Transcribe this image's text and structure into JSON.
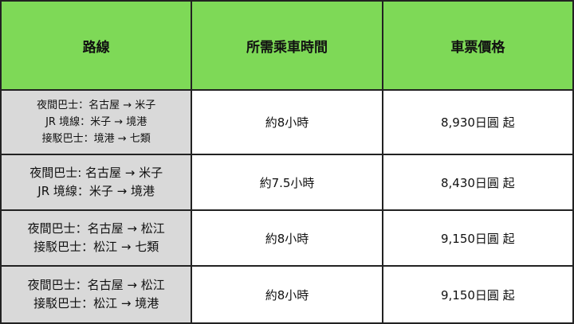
{
  "colors": {
    "header_bg": "#7ed957",
    "route_bg": "#d9d9d9"
  },
  "headers": [
    "路線",
    "所需乘車時間",
    "車票價格"
  ],
  "rows": [
    {
      "route": [
        "夜間巴士：名古屋 → 米子",
        "JR 境線：米子 → 境港",
        "接駁巴士：境港 → 七類"
      ],
      "time": "約8小時",
      "price": "8,930日圓 起"
    },
    {
      "route": [
        "夜間巴士: 名古屋 → 米子",
        "JR 境線：米子 → 境港"
      ],
      "time": "約7.5小時",
      "price": "8,430日圓 起"
    },
    {
      "route": [
        "夜間巴士：名古屋 → 松江",
        "接駁巴士：松江 → 七類"
      ],
      "time": "約8小時",
      "price": "9,150日圓 起"
    },
    {
      "route": [
        "夜間巴士：名古屋 → 松江",
        "接駁巴士：松江 → 境港"
      ],
      "time": "約8小時",
      "price": "9,150日圓 起"
    }
  ]
}
